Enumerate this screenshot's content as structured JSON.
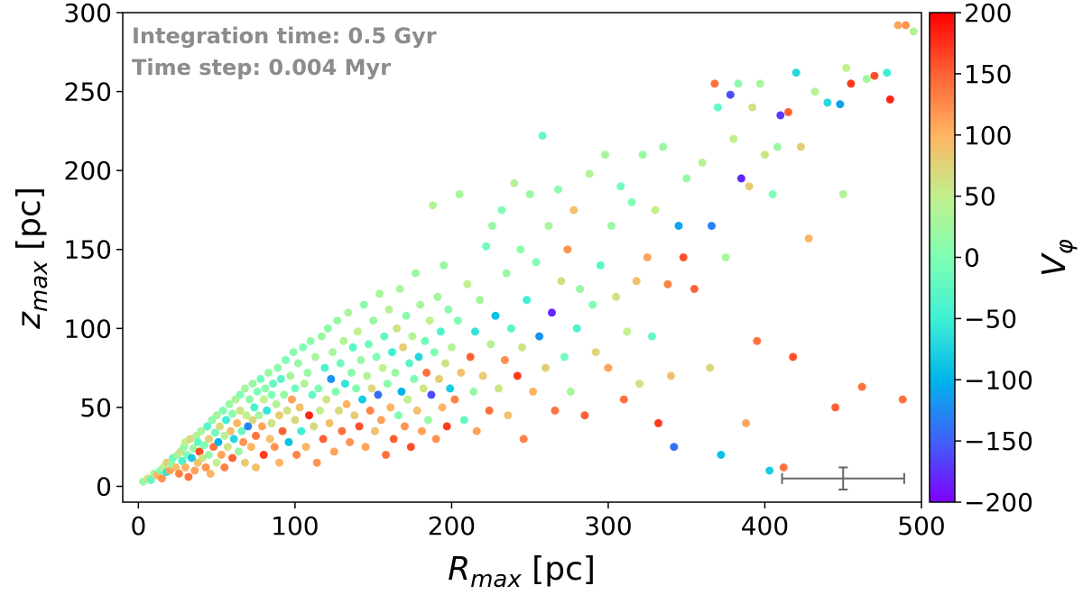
{
  "chart_data": {
    "type": "scatter",
    "xlabel": {
      "main": "R",
      "sub": "max",
      "unit": " [pc]"
    },
    "ylabel": {
      "main": "z",
      "sub": "max",
      "unit": " [pc]"
    },
    "xlim": [
      -10,
      500
    ],
    "ylim": [
      -10,
      300
    ],
    "xticks": [
      0,
      100,
      200,
      300,
      400,
      500
    ],
    "yticks": [
      0,
      50,
      100,
      150,
      200,
      250,
      300
    ],
    "grid": false,
    "annotations": [
      "Integration time: 0.5 Gyr",
      "Time step: 0.004 Myr"
    ],
    "colorbar": {
      "label_main": "V",
      "label_sub": "φ",
      "range": [
        -200,
        200
      ],
      "ticks": [
        200,
        150,
        100,
        50,
        0,
        -50,
        -100,
        -150,
        -200
      ],
      "tick_labels": [
        "200",
        "150",
        "100",
        "50",
        "0",
        "−50",
        "−100",
        "−150",
        "−200"
      ],
      "colormap": "rainbow"
    },
    "error_bar": {
      "x": 450,
      "y": 5,
      "xerr": 39,
      "yerr": 7,
      "color": "#666666"
    },
    "marker_size": 4.5,
    "points": [
      [
        3,
        3,
        20
      ],
      [
        6,
        5,
        60
      ],
      [
        8,
        4,
        -20
      ],
      [
        10,
        8,
        30
      ],
      [
        12,
        7,
        100
      ],
      [
        14,
        10,
        0
      ],
      [
        15,
        5,
        120
      ],
      [
        16,
        12,
        40
      ],
      [
        18,
        9,
        -60
      ],
      [
        18,
        15,
        80
      ],
      [
        20,
        10,
        110
      ],
      [
        21,
        14,
        20
      ],
      [
        22,
        18,
        -10
      ],
      [
        24,
        12,
        90
      ],
      [
        25,
        20,
        30
      ],
      [
        26,
        8,
        130
      ],
      [
        27,
        22,
        60
      ],
      [
        28,
        16,
        -40
      ],
      [
        29,
        25,
        10
      ],
      [
        30,
        12,
        100
      ],
      [
        30,
        28,
        50
      ],
      [
        31,
        20,
        0
      ],
      [
        32,
        6,
        140
      ],
      [
        33,
        30,
        70
      ],
      [
        34,
        18,
        -80
      ],
      [
        35,
        24,
        20
      ],
      [
        36,
        10,
        110
      ],
      [
        37,
        32,
        40
      ],
      [
        38,
        15,
        90
      ],
      [
        38,
        28,
        -20
      ],
      [
        39,
        22,
        160
      ],
      [
        40,
        35,
        30
      ],
      [
        41,
        18,
        60
      ],
      [
        42,
        26,
        0
      ],
      [
        43,
        12,
        120
      ],
      [
        44,
        38,
        -30
      ],
      [
        45,
        30,
        80
      ],
      [
        45,
        20,
        20
      ],
      [
        46,
        8,
        100
      ],
      [
        47,
        42,
        10
      ],
      [
        48,
        25,
        140
      ],
      [
        49,
        34,
        -10
      ],
      [
        50,
        15,
        50
      ],
      [
        50,
        45,
        30
      ],
      [
        51,
        28,
        -100
      ],
      [
        52,
        38,
        70
      ],
      [
        53,
        20,
        110
      ],
      [
        54,
        48,
        0
      ],
      [
        55,
        32,
        40
      ],
      [
        55,
        12,
        130
      ],
      [
        56,
        42,
        -50
      ],
      [
        57,
        25,
        60
      ],
      [
        58,
        52,
        20
      ],
      [
        59,
        35,
        90
      ],
      [
        60,
        18,
        150
      ],
      [
        60,
        46,
        10
      ],
      [
        61,
        30,
        -70
      ],
      [
        62,
        55,
        40
      ],
      [
        63,
        40,
        100
      ],
      [
        64,
        22,
        20
      ],
      [
        65,
        58,
        0
      ],
      [
        65,
        48,
        60
      ],
      [
        66,
        35,
        -20
      ],
      [
        67,
        28,
        120
      ],
      [
        68,
        62,
        30
      ],
      [
        68,
        15,
        80
      ],
      [
        69,
        45,
        50
      ],
      [
        70,
        38,
        -130
      ],
      [
        71,
        55,
        10
      ],
      [
        72,
        25,
        100
      ],
      [
        73,
        65,
        20
      ],
      [
        73,
        42,
        70
      ],
      [
        74,
        50,
        -40
      ],
      [
        75,
        32,
        140
      ],
      [
        75,
        12,
        90
      ],
      [
        76,
        60,
        0
      ],
      [
        77,
        45,
        30
      ],
      [
        78,
        68,
        -10
      ],
      [
        79,
        38,
        110
      ],
      [
        80,
        55,
        50
      ],
      [
        80,
        20,
        170
      ],
      [
        81,
        62,
        10
      ],
      [
        82,
        48,
        -60
      ],
      [
        83,
        72,
        20
      ],
      [
        84,
        30,
        90
      ],
      [
        85,
        58,
        0
      ],
      [
        85,
        40,
        60
      ],
      [
        86,
        65,
        -20
      ],
      [
        87,
        25,
        120
      ],
      [
        88,
        52,
        40
      ],
      [
        89,
        75,
        10
      ],
      [
        90,
        45,
        80
      ],
      [
        90,
        15,
        100
      ],
      [
        91,
        68,
        -30
      ],
      [
        92,
        35,
        150
      ],
      [
        93,
        58,
        20
      ],
      [
        94,
        80,
        0
      ],
      [
        95,
        48,
        60
      ],
      [
        96,
        28,
        -90
      ],
      [
        97,
        70,
        30
      ],
      [
        98,
        55,
        110
      ],
      [
        99,
        85,
        10
      ],
      [
        100,
        42,
        70
      ],
      [
        100,
        62,
        -10
      ],
      [
        101,
        20,
        130
      ],
      [
        102,
        78,
        20
      ],
      [
        103,
        50,
        90
      ],
      [
        104,
        35,
        -50
      ],
      [
        105,
        88,
        0
      ],
      [
        106,
        65,
        40
      ],
      [
        107,
        25,
        100
      ],
      [
        108,
        72,
        20
      ],
      [
        109,
        45,
        180
      ],
      [
        110,
        92,
        10
      ],
      [
        111,
        58,
        -20
      ],
      [
        112,
        38,
        70
      ],
      [
        113,
        82,
        30
      ],
      [
        114,
        15,
        120
      ],
      [
        115,
        62,
        0
      ],
      [
        116,
        48,
        50
      ],
      [
        117,
        95,
        20
      ],
      [
        118,
        30,
        150
      ],
      [
        119,
        75,
        -40
      ],
      [
        120,
        55,
        60
      ],
      [
        121,
        100,
        10
      ],
      [
        122,
        40,
        90
      ],
      [
        123,
        68,
        -120
      ],
      [
        124,
        85,
        30
      ],
      [
        125,
        22,
        110
      ],
      [
        126,
        60,
        0
      ],
      [
        127,
        105,
        20
      ],
      [
        128,
        48,
        70
      ],
      [
        129,
        78,
        -10
      ],
      [
        130,
        35,
        140
      ],
      [
        131,
        92,
        40
      ],
      [
        132,
        65,
        -60
      ],
      [
        133,
        52,
        100
      ],
      [
        134,
        110,
        30
      ],
      [
        135,
        28,
        120
      ],
      [
        136,
        72,
        10
      ],
      [
        137,
        88,
        -30
      ],
      [
        138,
        45,
        80
      ],
      [
        139,
        62,
        0
      ],
      [
        140,
        98,
        50
      ],
      [
        141,
        38,
        160
      ],
      [
        142,
        80,
        20
      ],
      [
        143,
        55,
        -80
      ],
      [
        144,
        115,
        10
      ],
      [
        145,
        25,
        110
      ],
      [
        146,
        70,
        40
      ],
      [
        147,
        90,
        -10
      ],
      [
        148,
        48,
        130
      ],
      [
        149,
        62,
        70
      ],
      [
        150,
        105,
        20
      ],
      [
        151,
        35,
        90
      ],
      [
        152,
        82,
        0
      ],
      [
        153,
        58,
        -140
      ],
      [
        154,
        122,
        30
      ],
      [
        155,
        42,
        110
      ],
      [
        156,
        75,
        50
      ],
      [
        157,
        95,
        -20
      ],
      [
        158,
        20,
        140
      ],
      [
        159,
        65,
        10
      ],
      [
        160,
        112,
        40
      ],
      [
        161,
        50,
        100
      ],
      [
        162,
        85,
        -50
      ],
      [
        163,
        30,
        150
      ],
      [
        164,
        72,
        20
      ],
      [
        165,
        100,
        60
      ],
      [
        166,
        45,
        0
      ],
      [
        167,
        125,
        30
      ],
      [
        168,
        60,
        -100
      ],
      [
        169,
        88,
        80
      ],
      [
        170,
        38,
        120
      ],
      [
        171,
        108,
        10
      ],
      [
        172,
        55,
        50
      ],
      [
        173,
        78,
        -30
      ],
      [
        174,
        25,
        160
      ],
      [
        175,
        95,
        40
      ],
      [
        176,
        68,
        0
      ],
      [
        177,
        135,
        20
      ],
      [
        178,
        48,
        90
      ],
      [
        179,
        82,
        -70
      ],
      [
        180,
        115,
        30
      ],
      [
        181,
        35,
        110
      ],
      [
        182,
        62,
        60
      ],
      [
        183,
        92,
        -10
      ],
      [
        184,
        72,
        140
      ],
      [
        185,
        42,
        20
      ],
      [
        186,
        105,
        50
      ],
      [
        187,
        58,
        -160
      ],
      [
        188,
        178,
        40
      ],
      [
        189,
        85,
        0
      ],
      [
        190,
        30,
        120
      ],
      [
        191,
        120,
        30
      ],
      [
        192,
        68,
        80
      ],
      [
        193,
        98,
        -40
      ],
      [
        194,
        50,
        100
      ],
      [
        195,
        140,
        20
      ],
      [
        196,
        78,
        60
      ],
      [
        197,
        38,
        170
      ],
      [
        198,
        112,
        10
      ],
      [
        199,
        62,
        -80
      ],
      [
        200,
        88,
        40
      ],
      [
        202,
        55,
        130
      ],
      [
        204,
        105,
        0
      ],
      [
        205,
        185,
        30
      ],
      [
        206,
        72,
        90
      ],
      [
        208,
        42,
        -20
      ],
      [
        210,
        128,
        50
      ],
      [
        212,
        82,
        150
      ],
      [
        214,
        60,
        20
      ],
      [
        215,
        98,
        -60
      ],
      [
        216,
        35,
        110
      ],
      [
        218,
        118,
        30
      ],
      [
        220,
        70,
        80
      ],
      [
        222,
        152,
        -10
      ],
      [
        224,
        48,
        140
      ],
      [
        225,
        90,
        40
      ],
      [
        226,
        165,
        20
      ],
      [
        228,
        108,
        -90
      ],
      [
        230,
        62,
        60
      ],
      [
        232,
        175,
        0
      ],
      [
        234,
        80,
        120
      ],
      [
        235,
        135,
        20
      ],
      [
        236,
        45,
        90
      ],
      [
        238,
        100,
        -30
      ],
      [
        240,
        192,
        40
      ],
      [
        242,
        70,
        170
      ],
      [
        244,
        150,
        10
      ],
      [
        245,
        88,
        60
      ],
      [
        246,
        30,
        130
      ],
      [
        248,
        118,
        -50
      ],
      [
        250,
        185,
        20
      ],
      [
        252,
        60,
        100
      ],
      [
        254,
        142,
        0
      ],
      [
        256,
        95,
        -120
      ],
      [
        258,
        222,
        -20
      ],
      [
        260,
        75,
        80
      ],
      [
        262,
        165,
        30
      ],
      [
        264,
        110,
        -180
      ],
      [
        266,
        48,
        140
      ],
      [
        268,
        188,
        10
      ],
      [
        270,
        130,
        60
      ],
      [
        272,
        82,
        -10
      ],
      [
        274,
        150,
        120
      ],
      [
        276,
        60,
        30
      ],
      [
        278,
        175,
        90
      ],
      [
        280,
        100,
        -40
      ],
      [
        282,
        125,
        20
      ],
      [
        285,
        45,
        150
      ],
      [
        288,
        198,
        40
      ],
      [
        290,
        115,
        0
      ],
      [
        292,
        85,
        70
      ],
      [
        295,
        140,
        -30
      ],
      [
        298,
        210,
        30
      ],
      [
        300,
        75,
        110
      ],
      [
        302,
        165,
        20
      ],
      [
        305,
        120,
        60
      ],
      [
        308,
        190,
        -10
      ],
      [
        310,
        55,
        140
      ],
      [
        312,
        98,
        50
      ],
      [
        315,
        180,
        0
      ],
      [
        318,
        130,
        90
      ],
      [
        320,
        65,
        60
      ],
      [
        322,
        210,
        20
      ],
      [
        325,
        145,
        110
      ],
      [
        328,
        95,
        -20
      ],
      [
        330,
        175,
        50
      ],
      [
        332,
        40,
        170
      ],
      [
        335,
        215,
        20
      ],
      [
        338,
        128,
        130
      ],
      [
        340,
        70,
        90
      ],
      [
        342,
        25,
        -140
      ],
      [
        345,
        165,
        -110
      ],
      [
        348,
        145,
        160
      ],
      [
        350,
        195,
        20
      ],
      [
        355,
        125,
        150
      ],
      [
        360,
        205,
        40
      ],
      [
        365,
        75,
        70
      ],
      [
        366,
        165,
        -130
      ],
      [
        368,
        255,
        140
      ],
      [
        370,
        240,
        -20
      ],
      [
        372,
        20,
        -90
      ],
      [
        375,
        145,
        30
      ],
      [
        378,
        248,
        -160
      ],
      [
        380,
        220,
        50
      ],
      [
        383,
        255,
        10
      ],
      [
        385,
        195,
        -180
      ],
      [
        388,
        40,
        110
      ],
      [
        390,
        190,
        80
      ],
      [
        392,
        240,
        60
      ],
      [
        395,
        92,
        140
      ],
      [
        397,
        255,
        30
      ],
      [
        400,
        210,
        60
      ],
      [
        403,
        10,
        -80
      ],
      [
        405,
        185,
        0
      ],
      [
        408,
        215,
        20
      ],
      [
        410,
        235,
        -170
      ],
      [
        412,
        12,
        140
      ],
      [
        415,
        237,
        150
      ],
      [
        418,
        82,
        160
      ],
      [
        420,
        262,
        -70
      ],
      [
        423,
        215,
        80
      ],
      [
        428,
        157,
        100
      ],
      [
        432,
        250,
        40
      ],
      [
        440,
        243,
        -70
      ],
      [
        445,
        50,
        150
      ],
      [
        448,
        242,
        -110
      ],
      [
        450,
        185,
        40
      ],
      [
        452,
        265,
        50
      ],
      [
        455,
        255,
        170
      ],
      [
        462,
        63,
        140
      ],
      [
        465,
        258,
        30
      ],
      [
        470,
        260,
        160
      ],
      [
        478,
        262,
        -50
      ],
      [
        480,
        245,
        180
      ],
      [
        485,
        292,
        110
      ],
      [
        488,
        55,
        140
      ],
      [
        490,
        292,
        120
      ],
      [
        495,
        288,
        40
      ]
    ]
  }
}
